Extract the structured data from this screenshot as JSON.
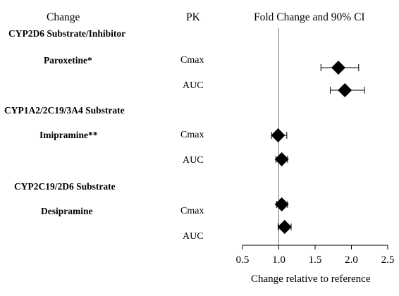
{
  "headers": {
    "change": "Change",
    "pk": "PK",
    "fold": "Fold Change and 90% CI"
  },
  "groups": [
    {
      "label": "CYP2D6 Substrate/Inhibitor",
      "drug": "Paroxetine*",
      "pk": [
        "Cmax",
        "AUC"
      ]
    },
    {
      "label": "CYP1A2/2C19/3A4 Substrate",
      "drug": "Imipramine**",
      "pk": [
        "Cmax",
        "AUC"
      ]
    },
    {
      "label": "CYP2C19/2D6 Substrate",
      "drug": "Desipramine",
      "pk": [
        "Cmax",
        "AUC"
      ]
    }
  ],
  "chart_data": {
    "type": "forest",
    "title": "Fold Change and 90% CI",
    "xlabel": "Change relative to reference",
    "xlim": [
      0.5,
      2.5
    ],
    "xticks": [
      "0.5",
      "1.0",
      "1.5",
      "2.0",
      "2.5"
    ],
    "xtick_values": [
      0.5,
      1.0,
      1.5,
      2.0,
      2.5
    ],
    "reference_line": 1.0,
    "marker": "diamond",
    "rows": [
      {
        "drug": "Paroxetine*",
        "pk": "Cmax",
        "estimate": 1.82,
        "ci_low": 1.58,
        "ci_high": 2.1
      },
      {
        "drug": "Paroxetine*",
        "pk": "AUC",
        "estimate": 1.91,
        "ci_low": 1.71,
        "ci_high": 2.18
      },
      {
        "drug": "Imipramine**",
        "pk": "Cmax",
        "estimate": 0.99,
        "ci_low": 0.9,
        "ci_high": 1.11
      },
      {
        "drug": "Imipramine**",
        "pk": "AUC",
        "estimate": 1.04,
        "ci_low": 0.96,
        "ci_high": 1.12
      },
      {
        "drug": "Desipramine",
        "pk": "Cmax",
        "estimate": 1.04,
        "ci_low": 0.97,
        "ci_high": 1.12
      },
      {
        "drug": "Desipramine",
        "pk": "AUC",
        "estimate": 1.08,
        "ci_low": 0.99,
        "ci_high": 1.17
      }
    ]
  }
}
